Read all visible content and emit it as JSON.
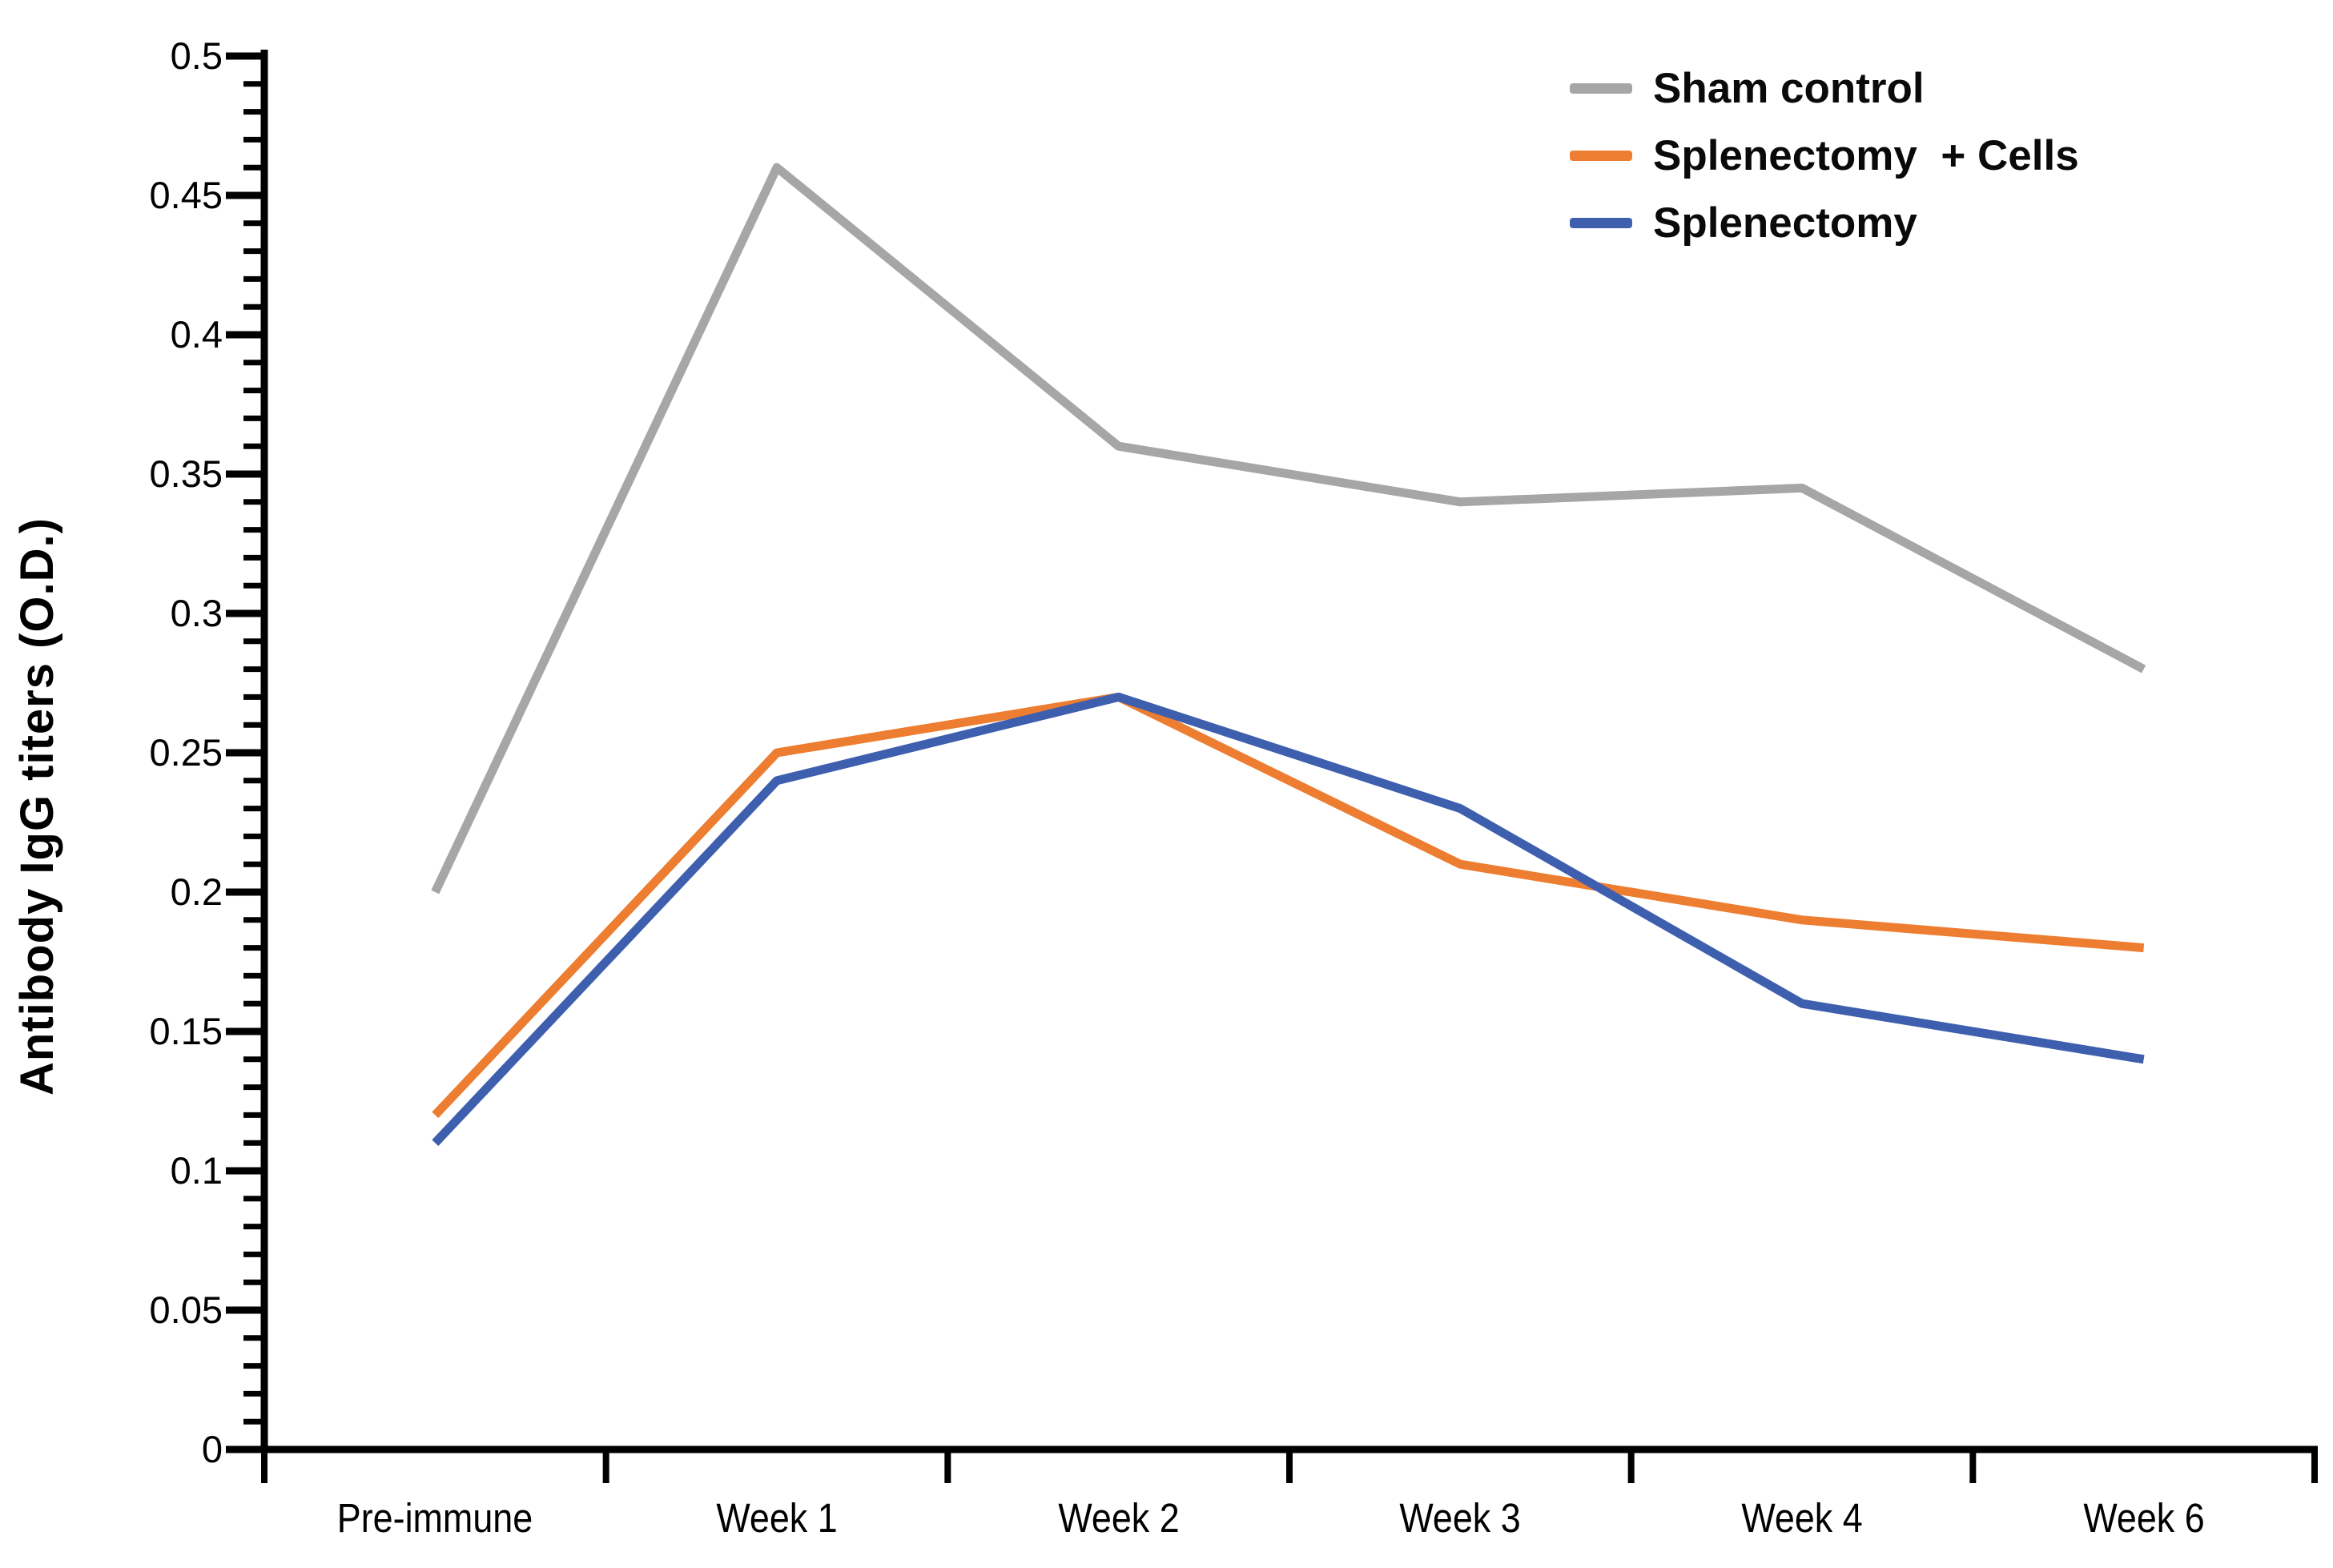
{
  "background": "#ffffff",
  "chart_data": {
    "type": "line",
    "title": "",
    "categories": [
      "Pre-immune",
      "Week 1",
      "Week 2",
      "Week 3",
      "Week 4",
      "Week 6"
    ],
    "series": [
      {
        "name": "Sham control",
        "color": "#A6A6A6",
        "values": [
          0.2,
          0.46,
          0.36,
          0.34,
          0.345,
          0.28
        ]
      },
      {
        "name": "Splenectomy  + Cells",
        "color": "#ED7D31",
        "values": [
          0.12,
          0.25,
          0.27,
          0.21,
          0.19,
          0.18
        ]
      },
      {
        "name": "Splenectomy",
        "color": "#3E5FAE",
        "values": [
          0.11,
          0.24,
          0.27,
          0.23,
          0.16,
          0.14
        ]
      }
    ],
    "xlabel": "",
    "ylabel": "Antibody IgG titers (O.D.)",
    "ylim": [
      0,
      0.5
    ],
    "y_ticks": [
      0,
      0.05,
      0.1,
      0.15,
      0.2,
      0.25,
      0.3,
      0.35,
      0.4,
      0.45,
      0.5
    ],
    "y_tick_labels": [
      "0",
      "0.05",
      "0.1",
      "0.15",
      "0.2",
      "0.25",
      "0.3",
      "0.35",
      "0.4",
      "0.45",
      "0.5"
    ],
    "y_minor_step": 0.01,
    "grid": false,
    "legend_position": "top-right",
    "axis_color": "#000000"
  }
}
